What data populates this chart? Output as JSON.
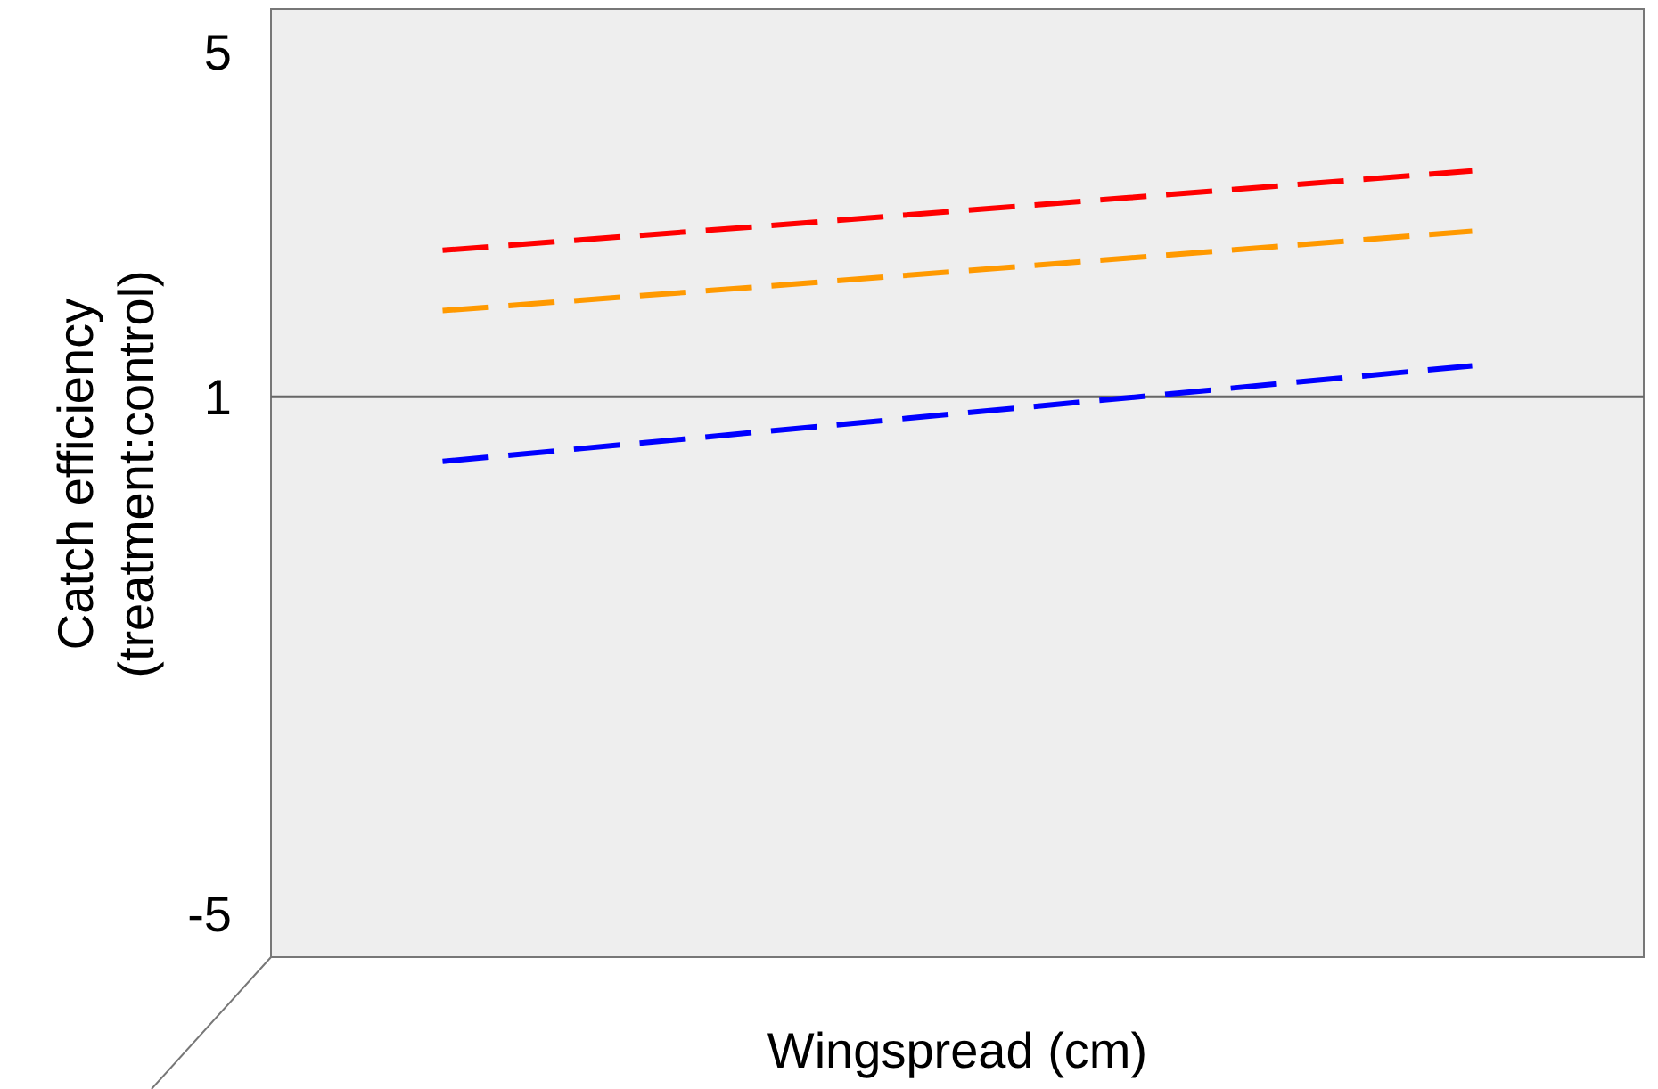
{
  "chart_data": {
    "type": "line",
    "xlabel": "Wingspread (cm)",
    "ylabel": "Catch efficiency\n(treatment:control)",
    "categories": [
      null,
      null,
      null,
      null
    ],
    "series": [
      {
        "color": "#ff0000",
        "values": [
          2.7,
          3.0,
          3.31,
          3.62
        ],
        "line_style": "dashed"
      },
      {
        "color": "#ff9900",
        "values": [
          2.0,
          2.3,
          2.61,
          2.92
        ],
        "line_style": "dashed"
      },
      {
        "color": "#0000ff",
        "values": [
          0.25,
          0.62,
          0.99,
          1.36
        ],
        "line_style": "dashed"
      }
    ],
    "ylim": [
      -5.5,
      5.5
    ],
    "yticks": [
      -5,
      1,
      5
    ],
    "ref_lines": [
      {
        "axis": "y",
        "value": 1,
        "color": "#666666"
      }
    ],
    "grid": false
  }
}
